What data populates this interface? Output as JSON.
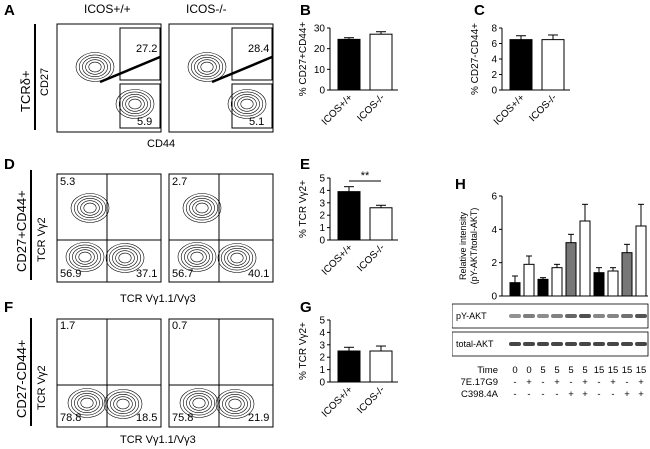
{
  "panel_letters": [
    "A",
    "B",
    "C",
    "D",
    "E",
    "F",
    "G",
    "H"
  ],
  "a": {
    "col1": "ICOS+/+",
    "col2": "ICOS-/-",
    "row_label": "TCRδ+",
    "ylabel": "CD27",
    "xlabel": "CD44",
    "gates_left": [
      "27.2",
      "5.9"
    ],
    "gates_right": [
      "28.4",
      "5.1"
    ]
  },
  "d": {
    "row_label": "CD27+CD44+",
    "ylabel": "TCR Vγ2",
    "xlabel": "TCR Vγ1.1/Vγ3",
    "left_quads": [
      "5.3",
      "56.9",
      "37.1"
    ],
    "right_quads": [
      "2.7",
      "56.7",
      "40.1"
    ]
  },
  "f": {
    "row_label": "CD27-CD44+",
    "ylabel": "TCR Vγ2",
    "xlabel": "TCR Vγ1.1/Vγ3",
    "left_quads": [
      "1.7",
      "78.8",
      "18.5"
    ],
    "right_quads": [
      "0.7",
      "75.8",
      "21.9"
    ]
  },
  "chart_data": [
    {
      "id": "B",
      "type": "bar",
      "categories": [
        "ICOS+/+",
        "ICOS-/-"
      ],
      "values": [
        24.5,
        27
      ],
      "errors": [
        0.8,
        1.2
      ],
      "ylabel": "% CD27+CD44+",
      "ylim": [
        0,
        30
      ],
      "yticks": [
        "0",
        "10",
        "20",
        "30"
      ],
      "fills": [
        "#000000",
        "#ffffff"
      ]
    },
    {
      "id": "C",
      "type": "bar",
      "categories": [
        "ICOS+/+",
        "ICOS-/-"
      ],
      "values": [
        6.5,
        6.5
      ],
      "errors": [
        0.5,
        0.6
      ],
      "ylabel": "% CD27-CD44+",
      "ylim": [
        0,
        8
      ],
      "yticks": [
        "0",
        "2",
        "4",
        "6",
        "8"
      ],
      "fills": [
        "#000000",
        "#ffffff"
      ]
    },
    {
      "id": "E",
      "type": "bar",
      "categories": [
        "ICOS+/+",
        "ICOS-/-"
      ],
      "values": [
        3.9,
        2.6
      ],
      "errors": [
        0.4,
        0.2
      ],
      "ylabel": "% TCR Vγ2+",
      "ylim": [
        0,
        5
      ],
      "yticks": [
        "0",
        "1",
        "2",
        "3",
        "4",
        "5"
      ],
      "fills": [
        "#000000",
        "#ffffff"
      ],
      "significance": "**"
    },
    {
      "id": "G",
      "type": "bar",
      "categories": [
        "ICOS+/+",
        "ICOS-/-"
      ],
      "values": [
        2.5,
        2.5
      ],
      "errors": [
        0.3,
        0.4
      ],
      "ylabel": "% TCR Vγ2+",
      "ylim": [
        0,
        5
      ],
      "yticks": [
        "0",
        "1",
        "2",
        "3",
        "4",
        "5"
      ],
      "fills": [
        "#000000",
        "#ffffff"
      ]
    },
    {
      "id": "H",
      "type": "bar",
      "ylabel": "Relative intensity (pY-AKT/total-AKT)",
      "ylabel_lines": [
        "Relative intensity",
        "(pY-AKT/total-AKT)"
      ],
      "ylim": [
        0,
        6
      ],
      "yticks": [
        "0",
        "2",
        "4",
        "6"
      ],
      "values": [
        0.8,
        1.9,
        1.0,
        1.7,
        3.2,
        4.5,
        1.4,
        1.5,
        2.6,
        4.2
      ],
      "errors": [
        0.4,
        0.5,
        0.1,
        0.2,
        0.5,
        1.0,
        0.3,
        0.2,
        0.5,
        1.3
      ],
      "fills": [
        "#000000",
        "#ffffff",
        "#000000",
        "#ffffff",
        "#777777",
        "#ffffff",
        "#000000",
        "#ffffff",
        "#777777",
        "#ffffff"
      ],
      "blot_labels": [
        "pY-AKT",
        "total-AKT"
      ],
      "table": {
        "rows": [
          {
            "label": "Time",
            "cells": [
              "0",
              "0",
              "5",
              "5",
              "5",
              "5",
              "15",
              "15",
              "15",
              "15"
            ]
          },
          {
            "label": "7E.17G9",
            "cells": [
              "-",
              "+",
              "-",
              "+",
              "-",
              "+",
              "-",
              "+",
              "-",
              "+"
            ]
          },
          {
            "label": "C398.4A",
            "cells": [
              "-",
              "-",
              "-",
              "-",
              "+",
              "+",
              "-",
              "-",
              "+",
              "+"
            ]
          }
        ]
      }
    }
  ]
}
